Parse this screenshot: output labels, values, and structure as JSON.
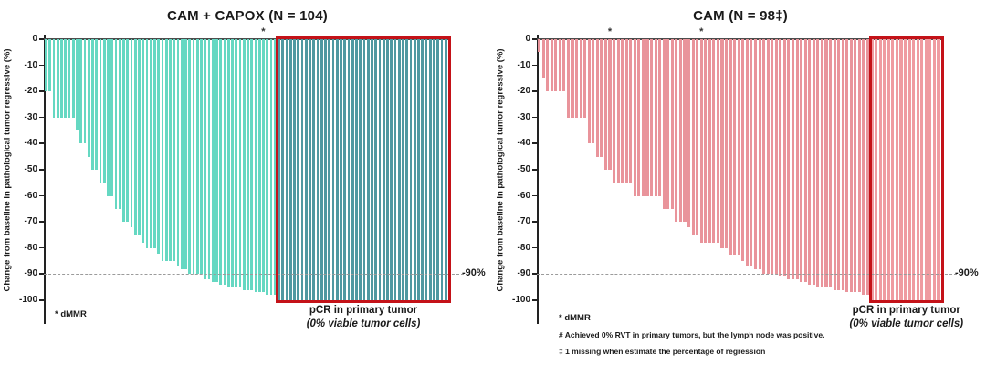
{
  "chart_data": [
    {
      "type": "bar",
      "title": "CAM + CAPOX (N = 104)",
      "ylabel": "Change from baseline in pathological tumor regressive (%)",
      "yticks": [
        0,
        -10,
        -20,
        -30,
        -40,
        -50,
        -60,
        -70,
        -80,
        -90,
        -100
      ],
      "ylim": [
        -100,
        0
      ],
      "grid": false,
      "legend_position": "none",
      "ref_line": {
        "value": -90,
        "label": "-90%"
      },
      "bar_color": "#65d8c2",
      "box_bar_color": "#4f98a1",
      "box_border_color": "#c41218",
      "box_start_index": 60,
      "box_label_line1": "pCR in primary tumor",
      "box_label_line2": "(0% viable tumor cells)",
      "dmmr_marker": "*",
      "dmmr_indices": [
        56
      ],
      "footnotes": [
        {
          "text": "* dMMR",
          "size": "big"
        }
      ],
      "values": [
        -20,
        -20,
        -30,
        -30,
        -30,
        -30,
        -30,
        -30,
        -35,
        -40,
        -40,
        -45,
        -50,
        -50,
        -55,
        -55,
        -60,
        -60,
        -65,
        -65,
        -70,
        -70,
        -72,
        -75,
        -75,
        -78,
        -80,
        -80,
        -80,
        -82,
        -85,
        -85,
        -85,
        -85,
        -87,
        -88,
        -88,
        -90,
        -90,
        -90,
        -90,
        -92,
        -92,
        -93,
        -93,
        -94,
        -94,
        -95,
        -95,
        -95,
        -95,
        -96,
        -96,
        -96,
        -97,
        -97,
        -97,
        -98,
        -98,
        -98,
        -100,
        -100,
        -100,
        -100,
        -100,
        -100,
        -100,
        -100,
        -100,
        -100,
        -100,
        -100,
        -100,
        -100,
        -100,
        -100,
        -100,
        -100,
        -100,
        -100,
        -100,
        -100,
        -100,
        -100,
        -100,
        -100,
        -100,
        -100,
        -100,
        -100,
        -100,
        -100,
        -100,
        -100,
        -100,
        -100,
        -100,
        -100,
        -100,
        -100,
        -100,
        -100,
        -100,
        -100
      ]
    },
    {
      "type": "bar",
      "title": "CAM (N = 98‡)",
      "ylabel": "Change from baseline in pathological tumor regressive (%)",
      "yticks": [
        0,
        -10,
        -20,
        -30,
        -40,
        -50,
        -60,
        -70,
        -80,
        -90,
        -100
      ],
      "ylim": [
        -100,
        0
      ],
      "grid": false,
      "legend_position": "none",
      "ref_line": {
        "value": -90,
        "label": "-90%"
      },
      "bar_color": "#e9949b",
      "box_bar_color": "#ef9ba1",
      "box_border_color": "#c41218",
      "box_start_index": 80,
      "box_label_line1": "pCR in primary tumor",
      "box_label_line2": "(0% viable tumor cells)",
      "dmmr_marker": "*",
      "dmmr_indices": [
        17,
        39
      ],
      "footnotes": [
        {
          "text": "* dMMR",
          "size": "big"
        },
        {
          "text": "# Achieved 0% RVT in primary tumors, but the lymph node was positive.",
          "size": "small"
        },
        {
          "text": "‡ 1 missing when estimate the percentage of regression",
          "size": "small"
        }
      ],
      "values": [
        -5,
        -15,
        -20,
        -20,
        -20,
        -20,
        -20,
        -30,
        -30,
        -30,
        -30,
        -30,
        -40,
        -40,
        -45,
        -45,
        -50,
        -50,
        -55,
        -55,
        -55,
        -55,
        -55,
        -60,
        -60,
        -60,
        -60,
        -60,
        -60,
        -60,
        -65,
        -65,
        -65,
        -70,
        -70,
        -70,
        -72,
        -75,
        -75,
        -78,
        -78,
        -78,
        -78,
        -78,
        -80,
        -80,
        -83,
        -83,
        -83,
        -85,
        -87,
        -87,
        -88,
        -88,
        -90,
        -90,
        -90,
        -90,
        -91,
        -91,
        -92,
        -92,
        -92,
        -93,
        -93,
        -94,
        -94,
        -95,
        -95,
        -95,
        -95,
        -96,
        -96,
        -96,
        -97,
        -97,
        -97,
        -97,
        -98,
        -98,
        -100,
        -100,
        -100,
        -100,
        -100,
        -100,
        -100,
        -100,
        -100,
        -100,
        -100,
        -100,
        -100,
        -100,
        -100,
        -100,
        -100
      ]
    }
  ]
}
